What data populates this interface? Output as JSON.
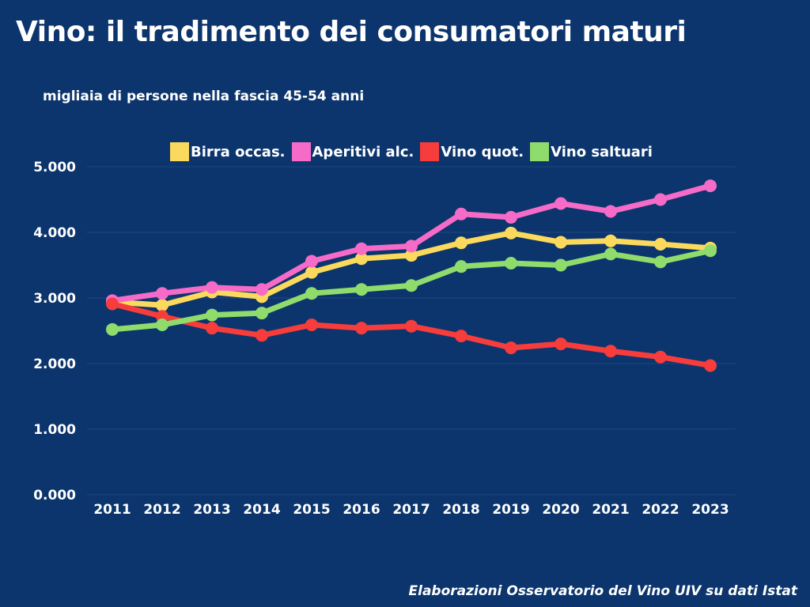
{
  "chart_data": {
    "type": "line",
    "title": "Vino: il tradimento dei consumatori maturi",
    "subtitle": "migliaia di persone nella fascia 45-54 anni",
    "source": "Elaborazioni Osservatorio del Vino UIV su dati Istat",
    "categories": [
      "2011",
      "2012",
      "2013",
      "2014",
      "2015",
      "2016",
      "2017",
      "2018",
      "2019",
      "2020",
      "2021",
      "2022",
      "2023"
    ],
    "ylim": [
      0,
      5000
    ],
    "yticks": [
      0,
      1000,
      2000,
      3000,
      4000,
      5000
    ],
    "ytick_labels": [
      "0.000",
      "1.000",
      "2.000",
      "3.000",
      "4.000",
      "5.000"
    ],
    "grid": true,
    "legend_position": "top",
    "series": [
      {
        "name": "Birra occas.",
        "color": "#fbd95c",
        "values": [
          2940,
          2890,
          3090,
          3020,
          3390,
          3600,
          3650,
          3840,
          3990,
          3850,
          3870,
          3820,
          3760
        ]
      },
      {
        "name": "Aperitivi alc.",
        "color": "#f76bc8",
        "values": [
          2960,
          3070,
          3160,
          3130,
          3560,
          3750,
          3790,
          4280,
          4230,
          4440,
          4320,
          4500,
          4710
        ]
      },
      {
        "name": "Vino quot.",
        "color": "#f73c3c",
        "values": [
          2910,
          2720,
          2540,
          2430,
          2590,
          2540,
          2570,
          2420,
          2240,
          2300,
          2190,
          2100,
          1970
        ]
      },
      {
        "name": "Vino saltuari",
        "color": "#8fdc6c",
        "values": [
          2520,
          2590,
          2740,
          2770,
          3070,
          3130,
          3190,
          3480,
          3530,
          3500,
          3670,
          3550,
          3720
        ]
      }
    ]
  }
}
